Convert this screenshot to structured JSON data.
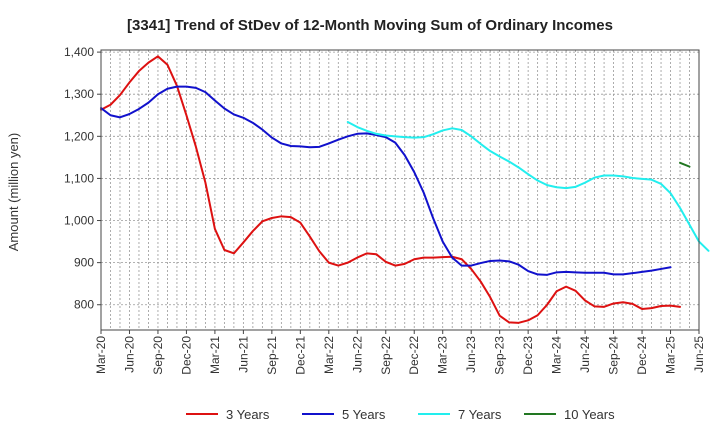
{
  "chart_data": {
    "type": "line",
    "title": "[3341]  Trend of StDev of 12-Month Moving Sum of Ordinary Incomes",
    "xlabel": "",
    "ylabel": "Amount (million yen)",
    "ylim": [
      740,
      1405
    ],
    "yticks": [
      800,
      900,
      1000,
      1100,
      1200,
      1300,
      1400
    ],
    "ytick_labels": [
      "800",
      "900",
      "1,000",
      "1,100",
      "1,200",
      "1,300",
      "1,400"
    ],
    "x_start": "Mar-20",
    "xtick_labels": [
      "Mar-20",
      "Jun-20",
      "Sep-20",
      "Dec-20",
      "Mar-21",
      "Jun-21",
      "Sep-21",
      "Dec-21",
      "Mar-22",
      "Jun-22",
      "Sep-22",
      "Dec-22",
      "Mar-23",
      "Jun-23",
      "Sep-23",
      "Dec-23",
      "Mar-24",
      "Jun-24",
      "Sep-24",
      "Dec-24",
      "Mar-25",
      "Jun-25"
    ],
    "n_months": 63,
    "grid": true,
    "legend_position": "bottom",
    "series": [
      {
        "name": "3 Years",
        "color": "#dd1111",
        "start_index": 0,
        "values": [
          1263,
          1275,
          1298,
          1328,
          1355,
          1375,
          1390,
          1370,
          1320,
          1250,
          1175,
          1090,
          980,
          930,
          922,
          948,
          975,
          998,
          1006,
          1010,
          1008,
          995,
          962,
          927,
          900,
          893,
          900,
          912,
          922,
          920,
          902,
          893,
          897,
          908,
          912,
          912,
          913,
          914,
          908,
          885,
          855,
          818,
          774,
          758,
          757,
          763,
          775,
          800,
          832,
          843,
          833,
          810,
          796,
          795,
          803,
          806,
          802,
          790,
          792,
          797,
          798,
          795
        ]
      },
      {
        "name": "5 Years",
        "color": "#1111cc",
        "start_index": 0,
        "values": [
          1267,
          1250,
          1245,
          1253,
          1265,
          1280,
          1300,
          1313,
          1318,
          1318,
          1315,
          1305,
          1285,
          1266,
          1252,
          1244,
          1232,
          1216,
          1197,
          1183,
          1177,
          1176,
          1174,
          1175,
          1183,
          1192,
          1200,
          1206,
          1207,
          1203,
          1198,
          1185,
          1155,
          1115,
          1066,
          1005,
          950,
          912,
          893,
          893,
          899,
          904,
          905,
          903,
          895,
          880,
          872,
          871,
          877,
          878,
          877,
          876,
          876,
          876,
          872,
          872,
          875,
          878,
          881,
          885,
          889
        ]
      },
      {
        "name": "7 Years",
        "color": "#22eeee",
        "start_index": 26,
        "values": [
          1234,
          1222,
          1213,
          1206,
          1202,
          1200,
          1198,
          1197,
          1198,
          1205,
          1214,
          1219,
          1215,
          1200,
          1182,
          1165,
          1152,
          1140,
          1126,
          1110,
          1095,
          1084,
          1079,
          1077,
          1080,
          1090,
          1102,
          1107,
          1107,
          1105,
          1101,
          1099,
          1097,
          1087,
          1065,
          1030,
          990,
          950,
          928
        ]
      },
      {
        "name": "10 Years",
        "color": "#227722",
        "start_index": 61,
        "values": [
          1137,
          1128
        ]
      }
    ]
  }
}
